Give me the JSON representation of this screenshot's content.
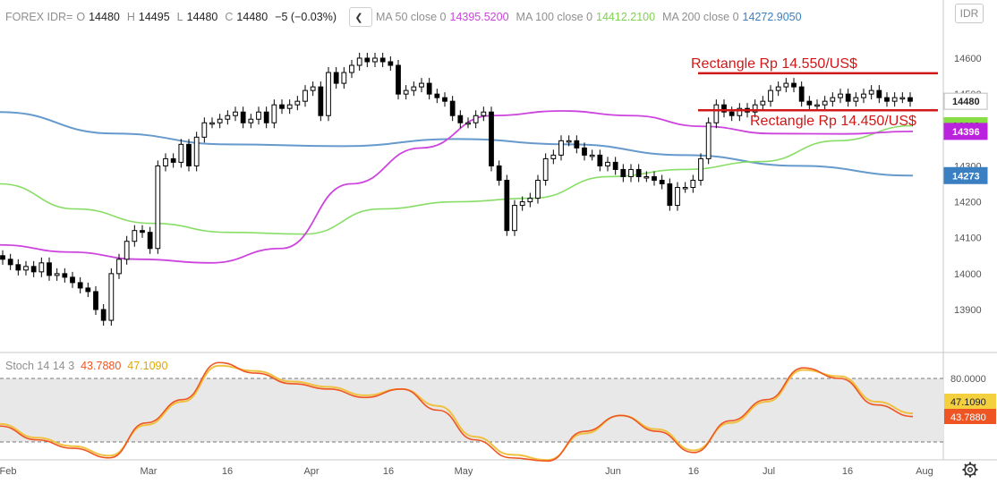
{
  "header": {
    "symbol": "FOREX IDR=",
    "o_label": "O",
    "o_value": "14480",
    "h_label": "H",
    "h_value": "14495",
    "l_label": "L",
    "l_value": "14480",
    "c_label": "C",
    "c_value": "14480",
    "change": "−5 (−0.03%)",
    "ma50_label": "MA 50 close 0",
    "ma50_value": "14395.5200",
    "ma100_label": "MA 100 close 0",
    "ma100_value": "14412.2100",
    "ma200_label": "MA 200 close 0",
    "ma200_value": "14272.9050",
    "symbol_box": "IDR"
  },
  "stoch_header": {
    "label": "Stoch 14 14 3",
    "k_value": "43.7880",
    "d_value": "47.1090"
  },
  "colors": {
    "ma50": "#cc44dd",
    "ma100": "#88dd66",
    "ma200": "#6699cc",
    "stoch_k": "#ee5522",
    "stoch_d": "#f0c040",
    "annotation": "#d01818",
    "axis_text": "#555555"
  },
  "chart_data": [
    {
      "type": "candlestick",
      "title": "FOREX IDR=",
      "y_ticks": [
        "14600",
        "14500",
        "14400",
        "14300",
        "14200",
        "14100",
        "14000",
        "13900"
      ],
      "ylim": [
        13840,
        14690
      ],
      "x_tick_labels": [
        "Feb",
        "Mar",
        "16",
        "Apr",
        "16",
        "May",
        "Jun",
        "16",
        "Jul",
        "16",
        "Aug"
      ],
      "price_labels": [
        {
          "text": "14480",
          "value": 14480,
          "bg": "#ffffff",
          "fg": "#222222"
        },
        {
          "text": "14412",
          "value": 14412,
          "bg": "#88dd44",
          "fg": "#222222"
        },
        {
          "text": "14396",
          "value": 14396,
          "bg": "#bb22dd",
          "fg": "#ffffff"
        },
        {
          "text": "14273",
          "value": 14273,
          "bg": "#3a7fc1",
          "fg": "#ffffff"
        }
      ],
      "annotations": [
        {
          "text": "Rectangle   Rp 14.550/US$",
          "level": 14558
        },
        {
          "text": "Rectangle   Rp 14.450/US$",
          "level": 14455
        }
      ],
      "series": [
        {
          "name": "Close",
          "values": [
            14040,
            14025,
            14010,
            14020,
            14005,
            14030,
            13995,
            14000,
            13990,
            13975,
            13960,
            13950,
            13900,
            13870,
            14000,
            14040,
            14090,
            14120,
            14115,
            14070,
            14300,
            14320,
            14310,
            14360,
            14300,
            14380,
            14420,
            14420,
            14430,
            14440,
            14450,
            14420,
            14430,
            14450,
            14420,
            14470,
            14460,
            14470,
            14480,
            14510,
            14520,
            14440,
            14560,
            14530,
            14560,
            14580,
            14600,
            14590,
            14600,
            14590,
            14580,
            14500,
            14510,
            14520,
            14530,
            14500,
            14490,
            14480,
            14440,
            14420,
            14420,
            14440,
            14450,
            14300,
            14260,
            14120,
            14190,
            14200,
            14210,
            14260,
            14320,
            14330,
            14370,
            14370,
            14350,
            14330,
            14330,
            14300,
            14310,
            14290,
            14270,
            14290,
            14270,
            14270,
            14260,
            14250,
            14190,
            14240,
            14240,
            14260,
            14320,
            14420,
            14470,
            14450,
            14440,
            14460,
            14450,
            14470,
            14480,
            14510,
            14520,
            14530,
            14520,
            14480,
            14470,
            14470,
            14480,
            14490,
            14500,
            14480,
            14490,
            14500,
            14510,
            14490,
            14480,
            14490,
            14490,
            14480
          ]
        },
        {
          "name": "MA 50",
          "values": [
            14080,
            14060,
            14040,
            14030,
            14070,
            14250,
            14350,
            14440,
            14453,
            14440,
            14410,
            14390,
            14389,
            14396
          ]
        },
        {
          "name": "MA 100",
          "values": [
            14250,
            14180,
            14140,
            14115,
            14110,
            14180,
            14200,
            14210,
            14270,
            14290,
            14312,
            14370,
            14412
          ]
        },
        {
          "name": "MA 200",
          "values": [
            14450,
            14390,
            14360,
            14355,
            14375,
            14360,
            14330,
            14300,
            14273
          ]
        }
      ]
    },
    {
      "type": "line",
      "title": "Stoch 14 14 3",
      "y_ticks": [
        "80.0000"
      ],
      "ylim": [
        -5,
        105
      ],
      "bands": [
        20,
        80
      ],
      "series": [
        {
          "name": "%K",
          "values": [
            35,
            22,
            14,
            5,
            38,
            60,
            95,
            85,
            75,
            70,
            62,
            70,
            50,
            22,
            5,
            2,
            30,
            45,
            30,
            10,
            40,
            60,
            90,
            80,
            55,
            44
          ]
        },
        {
          "name": "%D",
          "values": [
            37,
            24,
            16,
            7,
            36,
            58,
            92,
            87,
            77,
            72,
            64,
            70,
            54,
            25,
            8,
            3,
            28,
            45,
            32,
            12,
            38,
            58,
            88,
            82,
            58,
            47
          ]
        }
      ]
    }
  ]
}
